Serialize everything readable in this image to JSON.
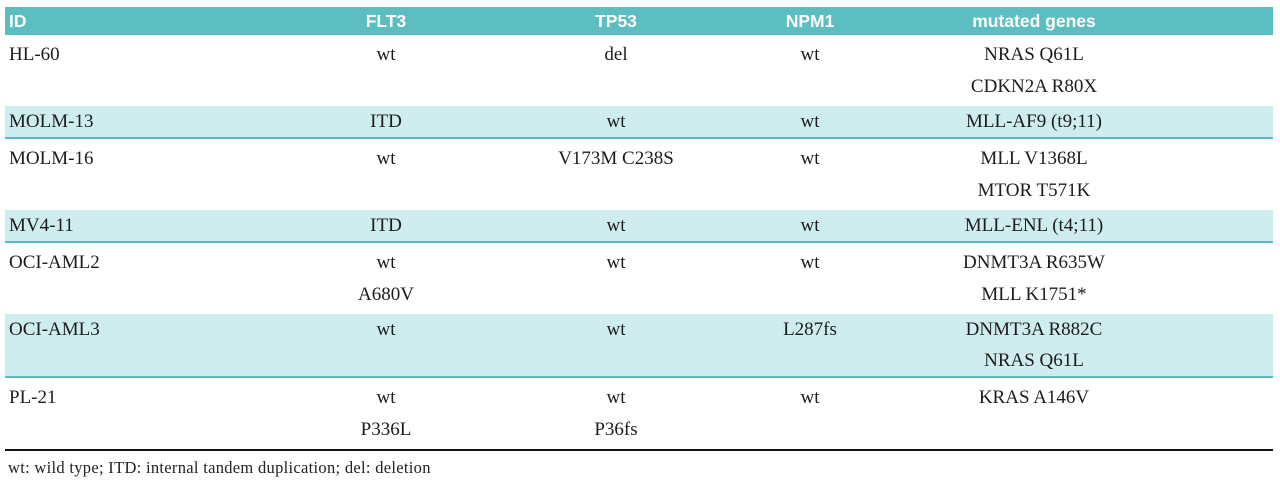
{
  "table": {
    "columns": [
      "ID",
      "FLT3",
      "TP53",
      "NPM1",
      "mutated genes"
    ],
    "rows": [
      {
        "highlighted": false,
        "cells": [
          [
            "HL-60"
          ],
          [
            "wt"
          ],
          [
            "del"
          ],
          [
            "wt"
          ],
          [
            "NRAS Q61L",
            "CDKN2A R80X"
          ]
        ]
      },
      {
        "highlighted": true,
        "cells": [
          [
            "MOLM-13"
          ],
          [
            "ITD"
          ],
          [
            "wt"
          ],
          [
            "wt"
          ],
          [
            "MLL-AF9 (t9;11)"
          ]
        ]
      },
      {
        "highlighted": false,
        "cells": [
          [
            "MOLM-16"
          ],
          [
            "wt"
          ],
          [
            "V173M C238S"
          ],
          [
            "wt"
          ],
          [
            "MLL V1368L",
            "MTOR T571K"
          ]
        ]
      },
      {
        "highlighted": true,
        "cells": [
          [
            "MV4-11"
          ],
          [
            "ITD"
          ],
          [
            "wt"
          ],
          [
            "wt"
          ],
          [
            "MLL-ENL (t4;11)"
          ]
        ]
      },
      {
        "highlighted": false,
        "cells": [
          [
            "OCI-AML2"
          ],
          [
            "wt",
            "A680V"
          ],
          [
            "wt"
          ],
          [
            "wt"
          ],
          [
            "DNMT3A R635W",
            "MLL K1751*"
          ]
        ]
      },
      {
        "highlighted": true,
        "cells": [
          [
            "OCI-AML3"
          ],
          [
            "wt"
          ],
          [
            "wt"
          ],
          [
            "L287fs"
          ],
          [
            "DNMT3A R882C",
            "NRAS Q61L"
          ]
        ]
      },
      {
        "highlighted": false,
        "cells": [
          [
            "PL-21"
          ],
          [
            "wt",
            "P336L"
          ],
          [
            "wt",
            "P36fs"
          ],
          [
            "wt"
          ],
          [
            "KRAS A146V"
          ]
        ]
      }
    ]
  },
  "footnote": "wt: wild type; ITD: internal tandem duplication; del: deletion",
  "colors": {
    "header_bg": "#5cbec0",
    "header_text": "#ffffff",
    "row_highlight_bg": "#cfecee",
    "highlight_border": "#5fb8c2",
    "body_text": "#1c1c1c",
    "table_bottom_border": "#111111"
  }
}
